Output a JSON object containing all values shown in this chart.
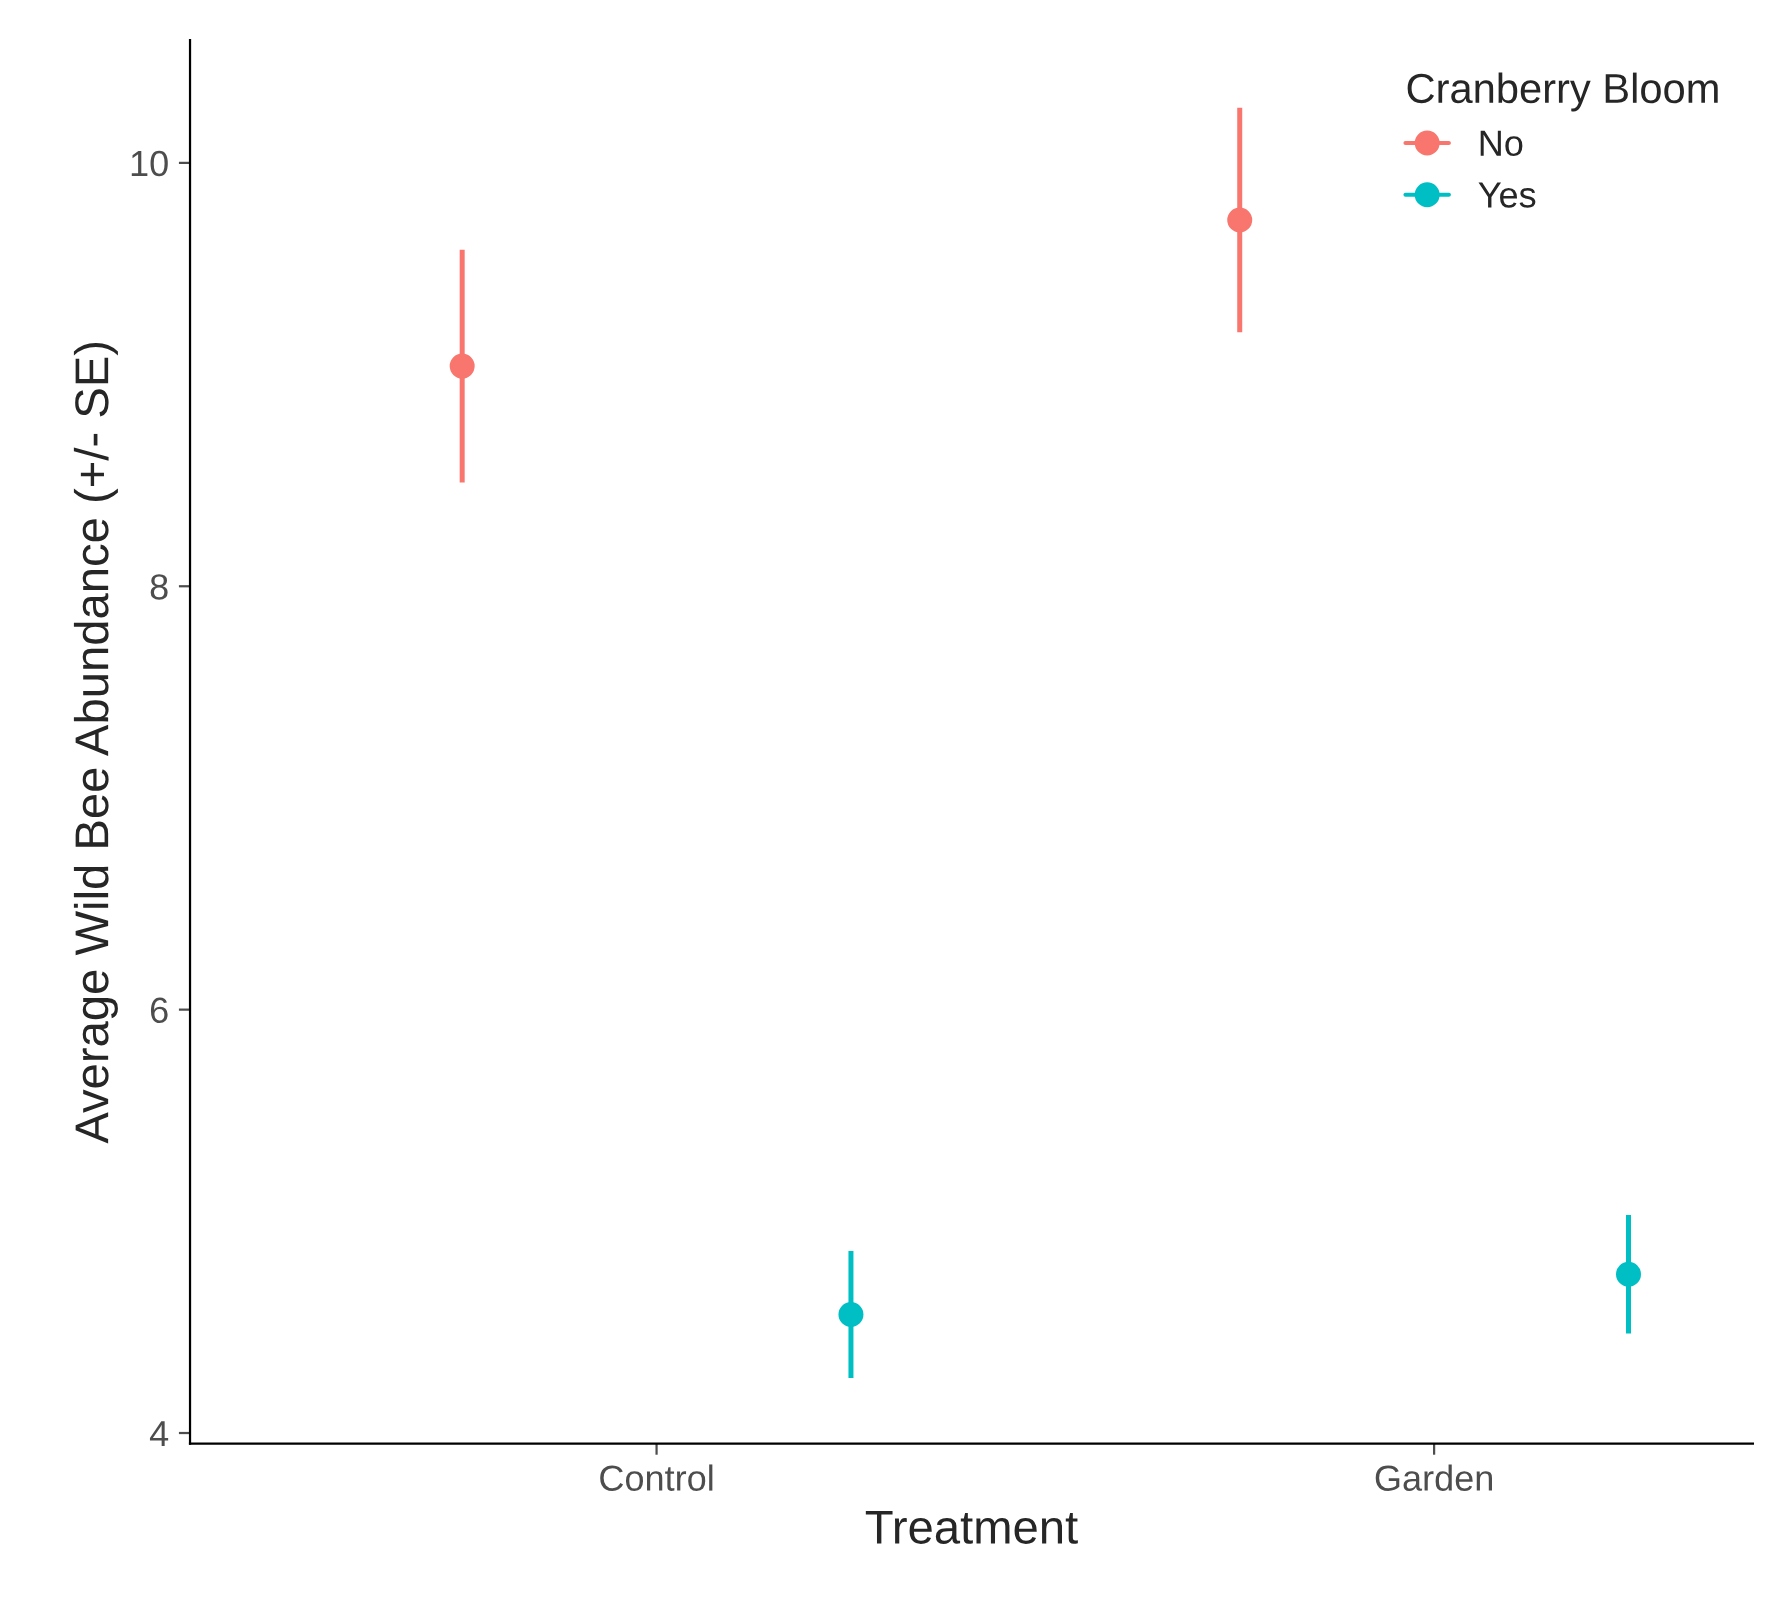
{
  "chart_data": {
    "type": "scatter",
    "xlabel": "Treatment",
    "ylabel": "Average Wild Bee Abundance (+/- SE)",
    "legend_title": "Cranberry Bloom",
    "categories": [
      "Control",
      "Garden"
    ],
    "series": [
      {
        "name": "No",
        "color": "#f8766d",
        "values": [
          9.04,
          9.73
        ],
        "errors": [
          0.55,
          0.53
        ]
      },
      {
        "name": "Yes",
        "color": "#00bfc4",
        "values": [
          4.56,
          4.75
        ],
        "errors": [
          0.3,
          0.28
        ]
      }
    ],
    "ylim": [
      3.95,
      10.58
    ],
    "yticks": [
      4,
      6,
      8,
      10
    ],
    "grid": false,
    "legend": "top right",
    "marker": "circle"
  }
}
